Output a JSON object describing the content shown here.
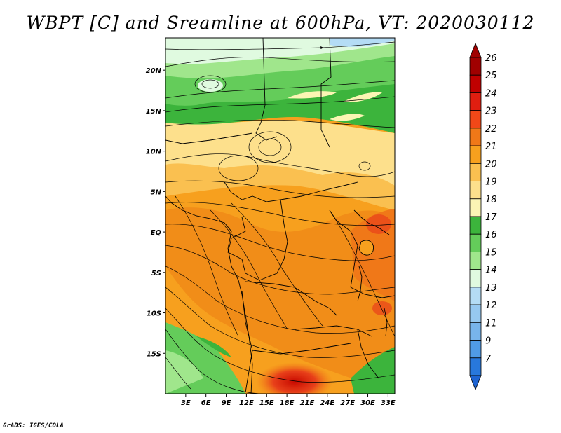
{
  "title": "WBPT [C] and Sreamline at 600hPa, VT: 2020030112",
  "credit": "GrADS: IGES/COLA",
  "map": {
    "lon_range": [
      0,
      34
    ],
    "lat_range": [
      -20,
      24
    ],
    "lon_ticks": [
      {
        "v": 3,
        "label": "3E"
      },
      {
        "v": 6,
        "label": "6E"
      },
      {
        "v": 9,
        "label": "9E"
      },
      {
        "v": 12,
        "label": "12E"
      },
      {
        "v": 15,
        "label": "15E"
      },
      {
        "v": 18,
        "label": "18E"
      },
      {
        "v": 21,
        "label": "21E"
      },
      {
        "v": 24,
        "label": "24E"
      },
      {
        "v": 27,
        "label": "27E"
      },
      {
        "v": 30,
        "label": "30E"
      },
      {
        "v": 33,
        "label": "33E"
      }
    ],
    "lat_ticks": [
      {
        "v": 20,
        "label": "20N"
      },
      {
        "v": 15,
        "label": "15N"
      },
      {
        "v": 10,
        "label": "10N"
      },
      {
        "v": 5,
        "label": "5N"
      },
      {
        "v": 0,
        "label": "EQ"
      },
      {
        "v": -5,
        "label": "5S"
      },
      {
        "v": -10,
        "label": "10S"
      },
      {
        "v": -15,
        "label": "15S"
      }
    ]
  },
  "colorbar": {
    "levels": [
      {
        "label": "26",
        "color": "#a00000"
      },
      {
        "label": "25",
        "color": "#c00000"
      },
      {
        "label": "24",
        "color": "#e01e10"
      },
      {
        "label": "23",
        "color": "#f04818"
      },
      {
        "label": "22",
        "color": "#f07818"
      },
      {
        "label": "21",
        "color": "#f7a01e"
      },
      {
        "label": "20",
        "color": "#fac050"
      },
      {
        "label": "19",
        "color": "#fde08c"
      },
      {
        "label": "18",
        "color": "#fbf5b4"
      },
      {
        "label": "17",
        "color": "#3cb43c"
      },
      {
        "label": "16",
        "color": "#64cc5a"
      },
      {
        "label": "15",
        "color": "#a0e68c"
      },
      {
        "label": "14",
        "color": "#e0fae0"
      },
      {
        "label": "13",
        "color": "#b4dcf5"
      },
      {
        "label": "12",
        "color": "#96c8f0"
      },
      {
        "label": "11",
        "color": "#78b4eb"
      },
      {
        "label": "9",
        "color": "#509be6"
      },
      {
        "label": "7",
        "color": "#2878dc"
      }
    ],
    "low_color": "#1e64d2"
  }
}
